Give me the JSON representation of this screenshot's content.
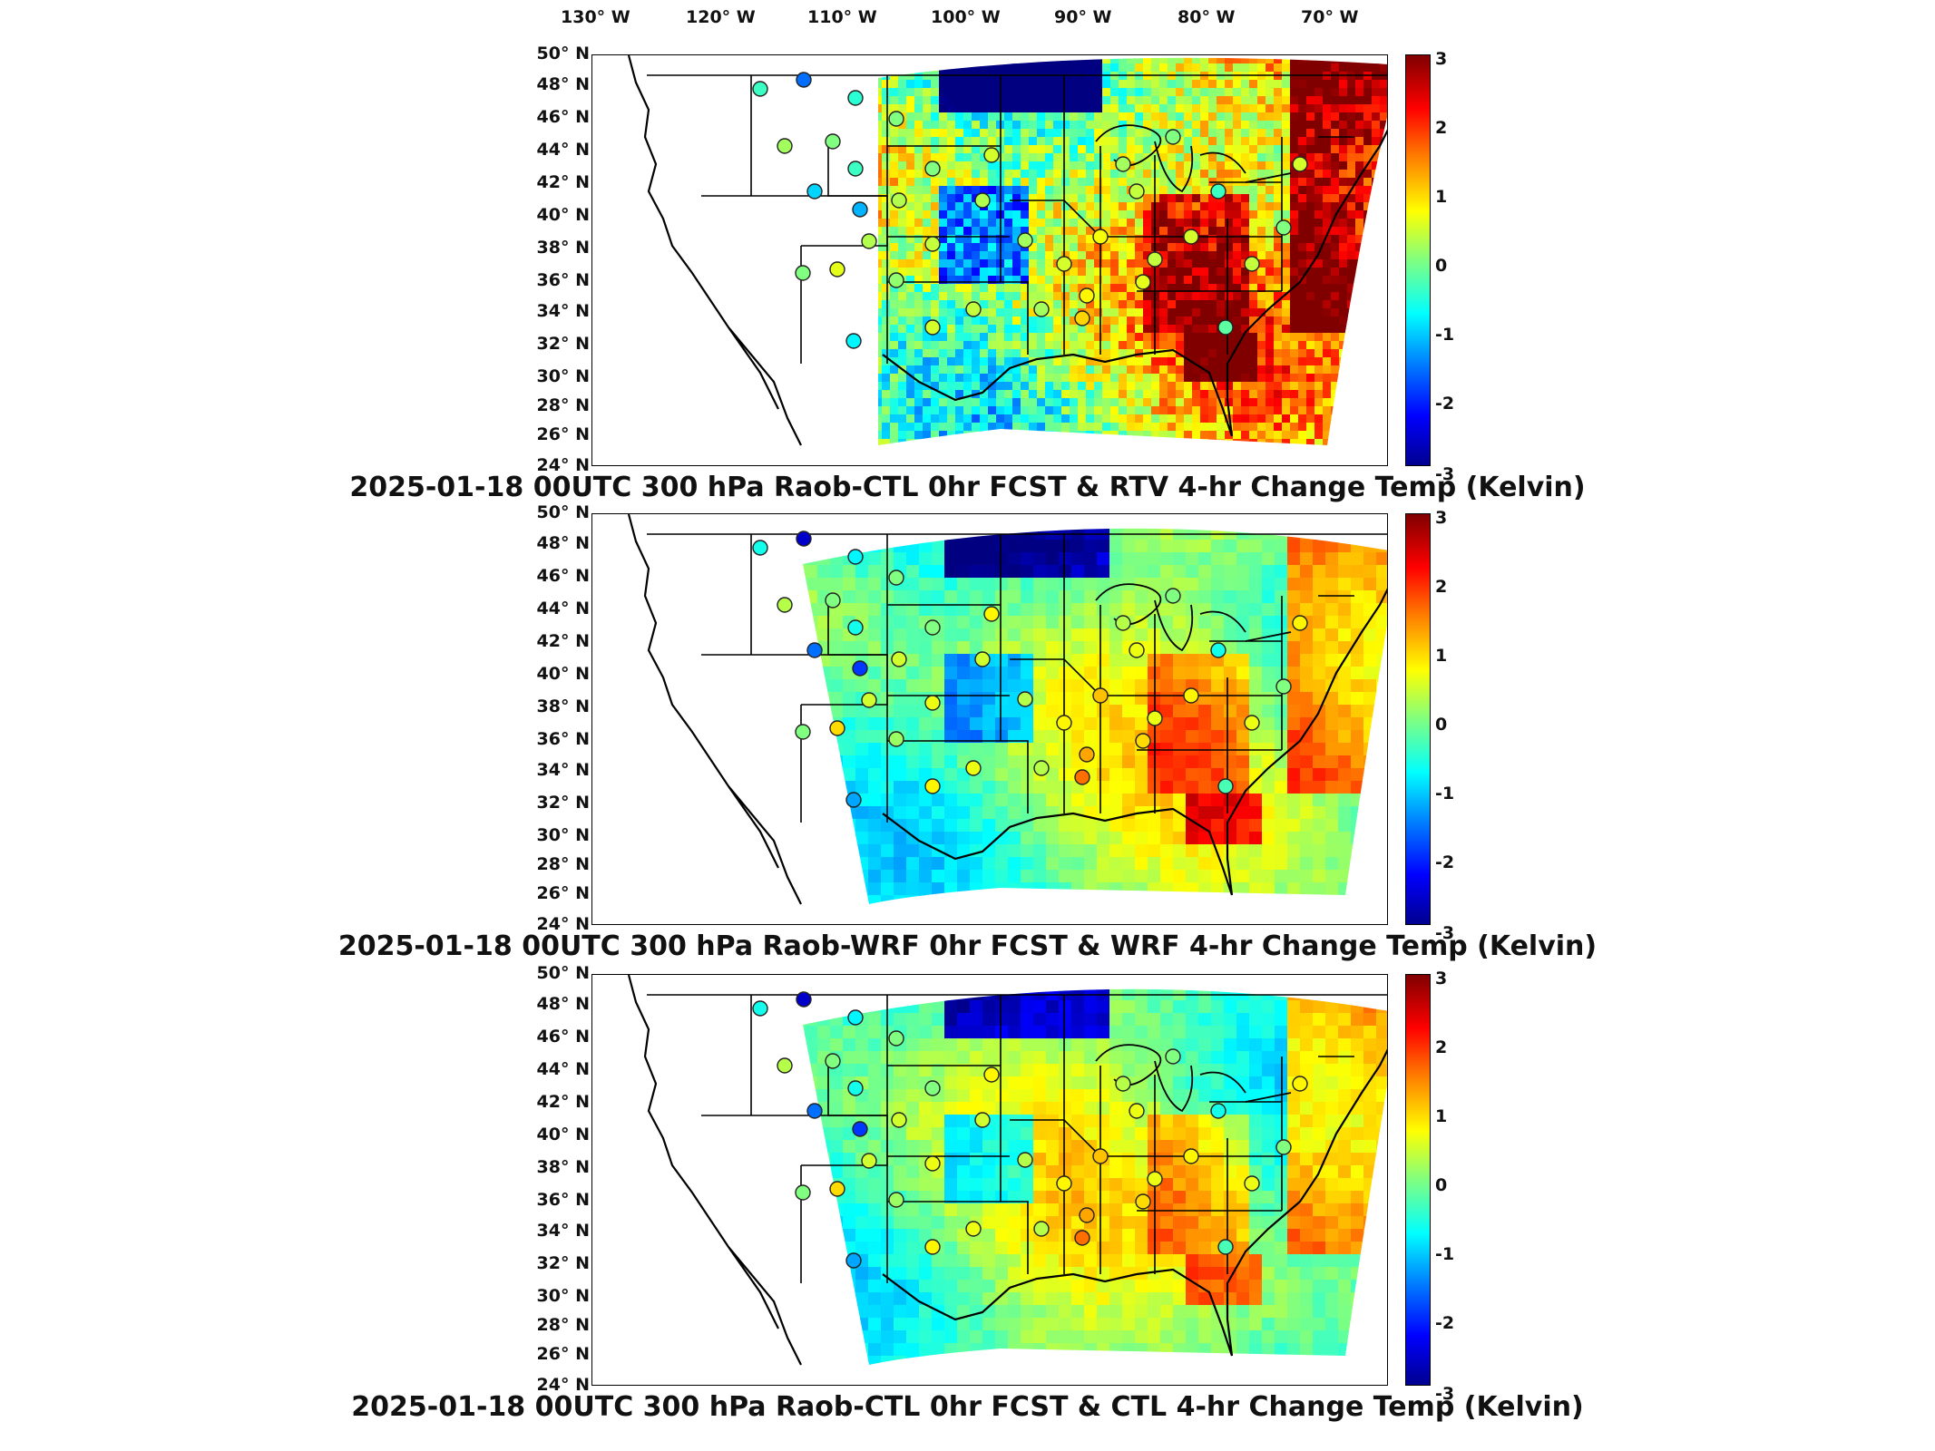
{
  "longitude_labels": [
    "130° W",
    "120° W",
    "110° W",
    "100° W",
    "90° W",
    "80° W",
    "70° W"
  ],
  "latitude_labels": [
    "50° N",
    "48° N",
    "46° N",
    "44° N",
    "42° N",
    "40° N",
    "38° N",
    "36° N",
    "34° N",
    "32° N",
    "30° N",
    "28° N",
    "26° N",
    "24° N"
  ],
  "colorbar": {
    "ticks": [
      "3",
      "2",
      "1",
      "0",
      "-1",
      "-2",
      "-3"
    ],
    "min": -3,
    "max": 3,
    "colormap": "jet"
  },
  "panels": [
    {
      "title": "2025-01-18 00UTC 300 hPa Raob-CTL 0hr FCST & RTV 4-hr Change Temp (Kelvin)",
      "field": "rtv"
    },
    {
      "title": "2025-01-18 00UTC 300 hPa Raob-WRF 0hr FCST & WRF 4-hr Change Temp (Kelvin)",
      "field": "wrf"
    },
    {
      "title": "2025-01-18 00UTC 300 hPa Raob-CTL 0hr FCST & CTL 4-hr Change Temp (Kelvin)",
      "field": "ctl"
    }
  ],
  "colors": {
    "coast": "#000000",
    "frame": "#000000",
    "station_outline": "#222222"
  }
}
